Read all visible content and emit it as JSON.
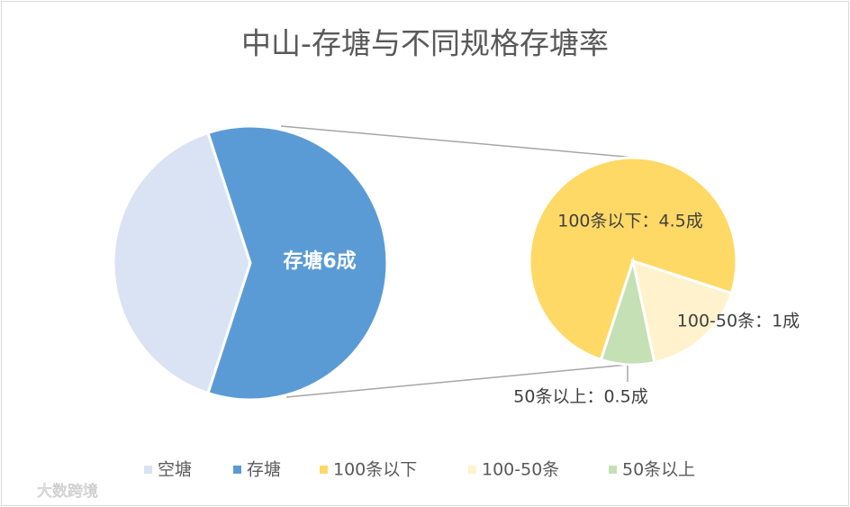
{
  "chart_data": {
    "type": "pie",
    "title": "中山-存塘与不同规格存塘率",
    "categories": [
      "空塘",
      "存塘"
    ],
    "values": [
      4,
      6
    ],
    "colors": [
      "#dae3f3",
      "#5b9bd5"
    ],
    "value_labels": [
      null,
      "存塘6成"
    ],
    "secondary": {
      "categories": [
        "100条以下",
        "100-50条",
        "50条以上"
      ],
      "values": [
        4.5,
        1,
        0.5
      ],
      "colors": [
        "#ffd966",
        "#fff2cc",
        "#c5e0b4"
      ],
      "value_labels": [
        "100条以下：4.5成",
        "100-50条：1成",
        "50条以上：0.5成"
      ]
    },
    "watermark": "大数跨境"
  }
}
